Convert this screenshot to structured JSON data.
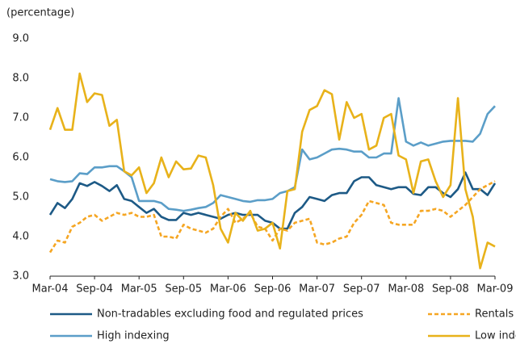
{
  "chart_data": {
    "type": "line",
    "ylabel": "(percentage)",
    "categories": [
      "Mar-04",
      null,
      null,
      null,
      null,
      null,
      "Sep-04",
      null,
      null,
      null,
      null,
      null,
      "Mar-05",
      null,
      null,
      null,
      null,
      null,
      "Sep-05",
      null,
      null,
      null,
      null,
      null,
      "Mar-06",
      null,
      null,
      null,
      null,
      null,
      "Sep-06",
      null,
      null,
      null,
      null,
      null,
      "Mar-07",
      null,
      null,
      null,
      null,
      null,
      "Sep-07",
      null,
      null,
      null,
      null,
      null,
      "Mar-08",
      null,
      null,
      null,
      null,
      null,
      "Sep-08",
      null,
      null,
      null,
      null,
      null,
      "Mar-09"
    ],
    "ylim": [
      3,
      9
    ],
    "yticks": [
      {
        "value": 3,
        "label": "3.0"
      },
      {
        "value": 4,
        "label": "4.0"
      },
      {
        "value": 5,
        "label": "5.0"
      },
      {
        "value": 6,
        "label": "6.0"
      },
      {
        "value": 7,
        "label": "7.0"
      },
      {
        "value": 8,
        "label": "8.0"
      },
      {
        "value": 9,
        "label": "9.0"
      }
    ],
    "grid": false,
    "legend": "bottom",
    "series": [
      {
        "name": "Non-tradables excluding food and regulated prices",
        "color": "#1d5a86",
        "line_style": "solid",
        "values": [
          4.55,
          4.85,
          4.72,
          4.95,
          5.35,
          5.28,
          5.38,
          5.28,
          5.15,
          5.3,
          4.95,
          4.9,
          4.75,
          4.6,
          4.7,
          4.5,
          4.42,
          4.42,
          4.6,
          4.55,
          4.6,
          4.55,
          4.5,
          4.45,
          4.55,
          4.6,
          4.55,
          4.55,
          4.55,
          4.4,
          4.35,
          4.2,
          4.2,
          4.6,
          4.75,
          5.0,
          4.95,
          4.9,
          5.05,
          5.1,
          5.1,
          5.4,
          5.5,
          5.5,
          5.3,
          5.25,
          5.2,
          5.25,
          5.25,
          5.08,
          5.05,
          5.25,
          5.25,
          5.1,
          5.0,
          5.2,
          5.62,
          5.2,
          5.2,
          5.05,
          5.35
        ]
      },
      {
        "name": "Rentals",
        "color": "#f5a623",
        "line_style": "dashed",
        "values": [
          3.6,
          3.9,
          3.85,
          4.25,
          4.35,
          4.5,
          4.55,
          4.4,
          4.5,
          4.6,
          4.55,
          4.6,
          4.5,
          4.5,
          4.55,
          4.0,
          4.0,
          3.95,
          4.3,
          4.2,
          4.15,
          4.1,
          4.2,
          4.5,
          4.7,
          4.35,
          4.45,
          4.6,
          4.25,
          4.2,
          3.9,
          4.2,
          4.15,
          4.35,
          4.4,
          4.45,
          3.85,
          3.8,
          3.85,
          3.95,
          4.0,
          4.35,
          4.55,
          4.9,
          4.85,
          4.8,
          4.35,
          4.3,
          4.3,
          4.3,
          4.65,
          4.65,
          4.7,
          4.65,
          4.5,
          4.65,
          4.8,
          5.0,
          5.2,
          5.3,
          5.4
        ]
      },
      {
        "name": "High indexing",
        "color": "#5b9ec8",
        "line_style": "solid",
        "values": [
          5.45,
          5.4,
          5.38,
          5.4,
          5.6,
          5.58,
          5.75,
          5.75,
          5.78,
          5.78,
          5.65,
          5.5,
          4.9,
          4.9,
          4.9,
          4.85,
          4.7,
          4.68,
          4.65,
          4.68,
          4.72,
          4.75,
          4.85,
          5.05,
          5.0,
          4.95,
          4.9,
          4.88,
          4.92,
          4.92,
          4.95,
          5.1,
          5.15,
          5.25,
          6.2,
          5.95,
          6.0,
          6.1,
          6.2,
          6.22,
          6.2,
          6.15,
          6.15,
          6.0,
          6.0,
          6.1,
          6.1,
          7.5,
          6.4,
          6.3,
          6.38,
          6.3,
          6.35,
          6.4,
          6.42,
          6.42,
          6.42,
          6.4,
          6.6,
          7.1,
          7.3
        ]
      },
      {
        "name": "Low indexing",
        "color": "#e8b21a",
        "line_style": "solid",
        "values": [
          6.7,
          7.25,
          6.7,
          6.7,
          8.12,
          7.4,
          7.62,
          7.58,
          6.8,
          6.95,
          5.65,
          5.55,
          5.75,
          5.1,
          5.35,
          6.0,
          5.5,
          5.9,
          5.7,
          5.72,
          6.05,
          6.0,
          5.3,
          4.2,
          3.85,
          4.6,
          4.4,
          4.65,
          4.15,
          4.2,
          4.35,
          3.7,
          5.15,
          5.2,
          6.65,
          7.2,
          7.3,
          7.7,
          7.6,
          6.45,
          7.4,
          7.0,
          7.1,
          6.2,
          6.3,
          7.0,
          7.1,
          6.05,
          5.95,
          5.1,
          5.9,
          5.95,
          5.4,
          5.0,
          5.3,
          7.5,
          5.2,
          4.5,
          3.2,
          3.85,
          3.75
        ]
      }
    ]
  }
}
